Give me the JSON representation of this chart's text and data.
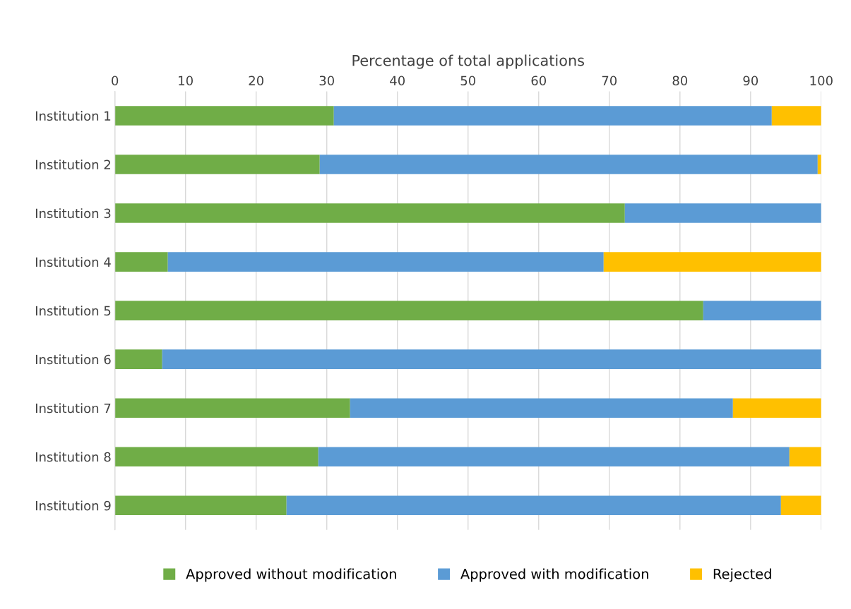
{
  "chart_data": {
    "type": "bar",
    "orientation": "horizontal",
    "stacked": true,
    "xlabel": "Percentage of total applications",
    "categories": [
      "Institution 1",
      "Institution 2",
      "Institution 3",
      "Institution 4",
      "Institution 5",
      "Institution 6",
      "Institution 7",
      "Institution 8",
      "Institution 9"
    ],
    "series": [
      {
        "name": "Approved without modification",
        "color": "#70ad47",
        "values": [
          31,
          29,
          72.2,
          7.5,
          83.3,
          6.7,
          33.3,
          28.8,
          24.3
        ]
      },
      {
        "name": "Approved with modification",
        "color": "#5b9bd5",
        "values": [
          62,
          70.5,
          27.8,
          61.7,
          16.7,
          93.3,
          54.2,
          66.7,
          70
        ]
      },
      {
        "name": "Rejected",
        "color": "#ffc000",
        "values": [
          7,
          0.5,
          0,
          30.8,
          0,
          0,
          12.5,
          4.5,
          5.7
        ]
      }
    ],
    "xlim": [
      0,
      100
    ],
    "xticks": [
      0,
      10,
      20,
      30,
      40,
      50,
      60,
      70,
      80,
      90,
      100
    ],
    "grid": "x",
    "legend": "bottom"
  }
}
